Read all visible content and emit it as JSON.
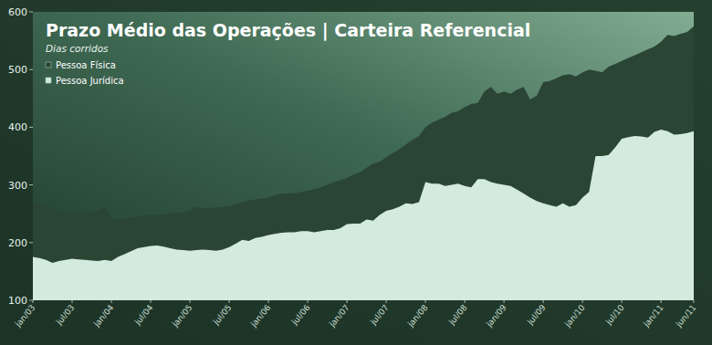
{
  "chart_data": {
    "type": "area",
    "title": "Prazo Médio das Operações | Carteira Referencial",
    "subtitle": "Dias corridos",
    "categories": [
      "jan/03",
      null,
      null,
      null,
      null,
      null,
      "jul/03",
      null,
      null,
      null,
      null,
      null,
      "jan/04",
      null,
      null,
      null,
      null,
      null,
      "jul/04",
      null,
      null,
      null,
      null,
      null,
      "jan/05",
      null,
      null,
      null,
      null,
      null,
      "jul/05",
      null,
      null,
      null,
      null,
      null,
      "jan/06",
      null,
      null,
      null,
      null,
      null,
      "jul/06",
      null,
      null,
      null,
      null,
      null,
      "jan/07",
      null,
      null,
      null,
      null,
      null,
      "jul/07",
      null,
      null,
      null,
      null,
      null,
      "jan/08",
      null,
      null,
      null,
      null,
      null,
      "jul/08",
      null,
      null,
      null,
      null,
      null,
      "jan/09",
      null,
      null,
      null,
      null,
      null,
      "jul/09",
      null,
      null,
      null,
      null,
      null,
      "jan/10",
      null,
      null,
      null,
      null,
      null,
      "jul/10",
      null,
      null,
      null,
      null,
      null,
      "jan/11",
      null,
      null,
      null,
      null,
      "jun/11"
    ],
    "series": [
      {
        "name": "Pessoa Física",
        "color": "#2b4535",
        "values": [
          270,
          267,
          263,
          258,
          255,
          253,
          252,
          253,
          253,
          254,
          255,
          262,
          240,
          241,
          242,
          243,
          245,
          247,
          248,
          248,
          249,
          250,
          251,
          253,
          256,
          262,
          260,
          260,
          261,
          262,
          263,
          266,
          270,
          273,
          275,
          276,
          278,
          282,
          285,
          285,
          286,
          288,
          290,
          293,
          296,
          300,
          305,
          308,
          312,
          318,
          322,
          330,
          337,
          340,
          348,
          355,
          362,
          370,
          378,
          385,
          400,
          408,
          413,
          418,
          425,
          428,
          435,
          440,
          442,
          462,
          470,
          458,
          462,
          458,
          465,
          470,
          448,
          455,
          478,
          480,
          485,
          490,
          492,
          488,
          495,
          500,
          498,
          495,
          505,
          510,
          515,
          520,
          525,
          530,
          535,
          540,
          548,
          560,
          558,
          562,
          565,
          575
        ]
      },
      {
        "name": "Pessoa Jurídica",
        "color": "#d3eade",
        "values": [
          175,
          173,
          170,
          165,
          168,
          170,
          172,
          171,
          170,
          169,
          168,
          170,
          168,
          175,
          180,
          185,
          190,
          192,
          194,
          195,
          193,
          190,
          188,
          187,
          186,
          187,
          188,
          187,
          186,
          188,
          192,
          198,
          205,
          203,
          208,
          210,
          213,
          215,
          217,
          218,
          218,
          220,
          220,
          218,
          220,
          222,
          222,
          225,
          232,
          233,
          233,
          240,
          238,
          248,
          255,
          258,
          262,
          268,
          267,
          270,
          305,
          302,
          302,
          298,
          300,
          302,
          298,
          296,
          310,
          310,
          305,
          302,
          300,
          298,
          292,
          285,
          278,
          272,
          268,
          265,
          262,
          268,
          262,
          265,
          278,
          288,
          350,
          350,
          352,
          365,
          380,
          383,
          385,
          384,
          382,
          392,
          396,
          393,
          387,
          388,
          390,
          393
        ]
      }
    ],
    "ylim": [
      100,
      600
    ],
    "yticks": [
      100,
      200,
      300,
      400,
      500,
      600
    ],
    "grid": false,
    "legend": "top-left"
  }
}
